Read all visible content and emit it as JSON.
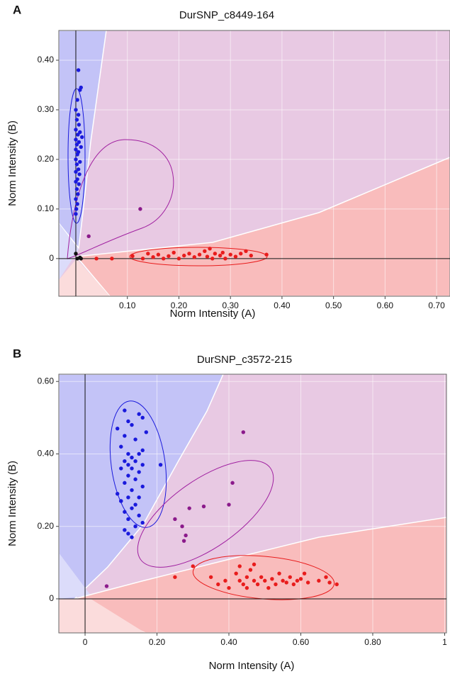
{
  "chart_data": [
    {
      "type": "scatter",
      "panel": "A",
      "title": "DurSNP_c8449-164",
      "xlabel": "Norm Intensity (A)",
      "ylabel": "Norm Intensity (B)",
      "xlim": [
        -0.033,
        0.726
      ],
      "ylim": [
        -0.076,
        0.46
      ],
      "grid": true,
      "xticks": [
        {
          "value": 0.1,
          "label": "0.10"
        },
        {
          "value": 0.2,
          "label": "0.20"
        },
        {
          "value": 0.3,
          "label": "0.30"
        },
        {
          "value": 0.4,
          "label": "0.40"
        },
        {
          "value": 0.5,
          "label": "0.50"
        },
        {
          "value": 0.6,
          "label": "0.60"
        },
        {
          "value": 0.7,
          "label": "0.70"
        }
      ],
      "yticks": [
        0,
        {
          "value": 0.1,
          "label": "0.10"
        },
        {
          "value": 0.2,
          "label": "0.20"
        },
        {
          "value": 0.3,
          "label": "0.30"
        },
        {
          "value": 0.4,
          "label": "0.40"
        }
      ],
      "series": [
        {
          "color": "#1a1adc",
          "x": [
            0.005,
            0.01,
            0.008,
            0.003,
            0.0,
            0.005,
            0.002,
            0.006,
            0.0,
            0.008,
            0.004,
            0.012,
            0.0,
            0.006,
            0.002,
            0.01,
            0.0,
            0.005,
            0.003,
            0.0,
            0.008,
            0.002,
            0.005,
            0.0,
            0.007,
            0.003,
            0.0,
            0.006,
            0.002,
            0.004,
            0.0,
            0.003,
            0.001,
            0.0
          ],
          "values": [
            0.38,
            0.345,
            0.34,
            0.32,
            0.3,
            0.29,
            0.28,
            0.27,
            0.26,
            0.255,
            0.25,
            0.245,
            0.24,
            0.235,
            0.23,
            0.225,
            0.22,
            0.215,
            0.21,
            0.2,
            0.195,
            0.19,
            0.18,
            0.175,
            0.17,
            0.16,
            0.155,
            0.15,
            0.14,
            0.13,
            0.12,
            0.11,
            0.1,
            0.09
          ]
        },
        {
          "color": "#8b1a8b",
          "x": [
            0.125,
            0.025
          ],
          "values": [
            0.1,
            0.045
          ]
        },
        {
          "color": "#e81c1c",
          "x": [
            0.04,
            0.07,
            0.11,
            0.13,
            0.14,
            0.15,
            0.16,
            0.17,
            0.18,
            0.19,
            0.2,
            0.21,
            0.22,
            0.23,
            0.24,
            0.25,
            0.255,
            0.26,
            0.265,
            0.27,
            0.28,
            0.285,
            0.29,
            0.3,
            0.31,
            0.32,
            0.33,
            0.34,
            0.37
          ],
          "values": [
            0.0,
            0.0,
            0.005,
            0.0,
            0.01,
            0.003,
            0.008,
            0.0,
            0.005,
            0.012,
            0.0,
            0.006,
            0.01,
            0.003,
            0.008,
            0.015,
            0.004,
            0.02,
            0.0,
            0.01,
            0.006,
            0.012,
            0.0,
            0.008,
            0.004,
            0.01,
            0.015,
            0.006,
            0.008
          ]
        },
        {
          "color": "#111111",
          "x": [
            0.0,
            0.003,
            0.008,
            0.01
          ],
          "values": [
            0.01,
            0.0,
            0.002,
            0.0
          ]
        }
      ]
    },
    {
      "type": "scatter",
      "panel": "B",
      "title": "DurSNP_c3572-215",
      "xlabel": "Norm Intensity (A)",
      "ylabel": "Norm Intensity (B)",
      "xlim": [
        -0.073,
        1.005
      ],
      "ylim": [
        -0.094,
        0.62
      ],
      "grid": true,
      "xticks": [
        0,
        {
          "value": 0.2,
          "label": "0.20"
        },
        {
          "value": 0.4,
          "label": "0.40"
        },
        {
          "value": 0.6,
          "label": "0.60"
        },
        {
          "value": 0.8,
          "label": "0.80"
        },
        1
      ],
      "yticks": [
        0,
        {
          "value": 0.2,
          "label": "0.20"
        },
        {
          "value": 0.4,
          "label": "0.40"
        },
        {
          "value": 0.6,
          "label": "0.60"
        }
      ],
      "series": [
        {
          "color": "#1a1adc",
          "x": [
            0.11,
            0.15,
            0.16,
            0.12,
            0.13,
            0.09,
            0.17,
            0.11,
            0.14,
            0.1,
            0.16,
            0.12,
            0.15,
            0.13,
            0.11,
            0.14,
            0.12,
            0.16,
            0.1,
            0.13,
            0.15,
            0.12,
            0.14,
            0.11,
            0.16,
            0.13,
            0.09,
            0.21,
            0.12,
            0.15,
            0.1,
            0.14,
            0.13,
            0.11,
            0.12,
            0.16,
            0.14,
            0.1,
            0.15,
            0.12,
            0.13,
            0.11
          ],
          "values": [
            0.52,
            0.51,
            0.5,
            0.49,
            0.48,
            0.47,
            0.46,
            0.45,
            0.44,
            0.42,
            0.41,
            0.4,
            0.4,
            0.39,
            0.38,
            0.38,
            0.37,
            0.37,
            0.36,
            0.36,
            0.35,
            0.34,
            0.33,
            0.32,
            0.31,
            0.3,
            0.29,
            0.37,
            0.28,
            0.28,
            0.27,
            0.26,
            0.25,
            0.24,
            0.22,
            0.21,
            0.2,
            0.27,
            0.23,
            0.18,
            0.17,
            0.19
          ]
        },
        {
          "color": "#8b1a8b",
          "x": [
            0.44,
            0.41,
            0.4,
            0.33,
            0.29,
            0.25,
            0.27,
            0.28,
            0.275,
            0.06
          ],
          "values": [
            0.46,
            0.32,
            0.26,
            0.255,
            0.25,
            0.22,
            0.2,
            0.175,
            0.16,
            0.035
          ]
        },
        {
          "color": "#e81c1c",
          "x": [
            0.25,
            0.3,
            0.35,
            0.37,
            0.39,
            0.4,
            0.42,
            0.43,
            0.44,
            0.45,
            0.46,
            0.47,
            0.48,
            0.49,
            0.5,
            0.51,
            0.52,
            0.53,
            0.54,
            0.55,
            0.56,
            0.57,
            0.58,
            0.59,
            0.6,
            0.61,
            0.62,
            0.65,
            0.67,
            0.68,
            0.7,
            0.43,
            0.45,
            0.47
          ],
          "values": [
            0.06,
            0.09,
            0.06,
            0.04,
            0.05,
            0.03,
            0.07,
            0.05,
            0.04,
            0.06,
            0.08,
            0.05,
            0.04,
            0.06,
            0.05,
            0.03,
            0.055,
            0.04,
            0.07,
            0.05,
            0.045,
            0.06,
            0.04,
            0.05,
            0.055,
            0.07,
            0.045,
            0.05,
            0.06,
            0.045,
            0.04,
            0.09,
            0.03,
            0.095
          ]
        }
      ]
    }
  ]
}
